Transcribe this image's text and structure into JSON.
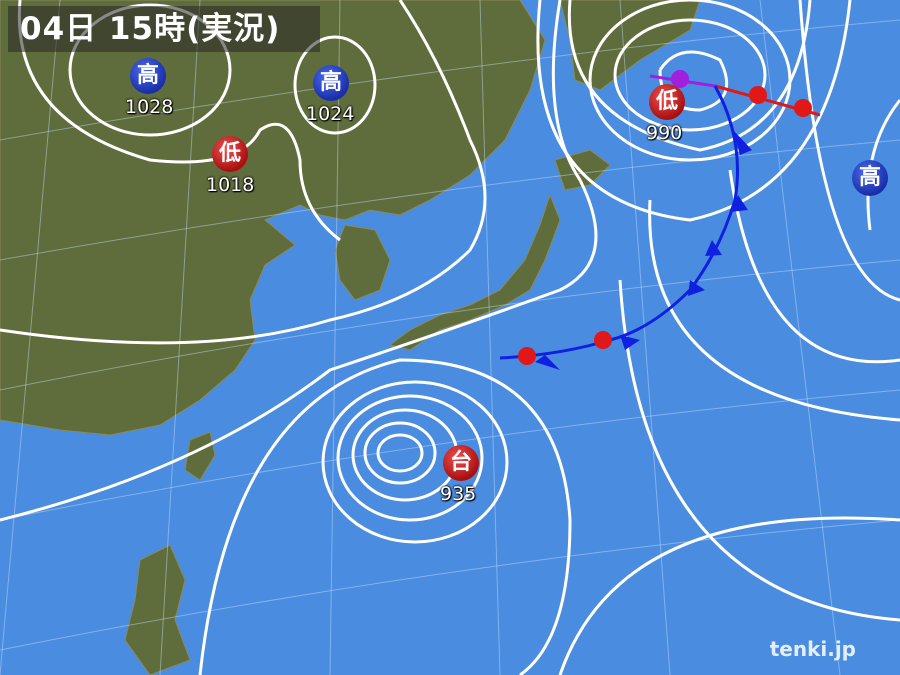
{
  "title": "04日 15時(実況)",
  "colors": {
    "ocean": "#4a8ce0",
    "land": "#5e6b3a",
    "isobar": "#ffffff",
    "warm_front": "#e01818",
    "cold_front": "#1020e0",
    "occluded_front": "#a020e0",
    "high": "#1a2ea8",
    "low": "#c01818"
  },
  "pressure_systems": [
    {
      "type": "high",
      "symbol": "高",
      "value": "1028"
    },
    {
      "type": "high",
      "symbol": "高",
      "value": "1024"
    },
    {
      "type": "low",
      "symbol": "低",
      "value": "1018"
    },
    {
      "type": "low",
      "symbol": "低",
      "value": "990"
    },
    {
      "type": "typhoon",
      "symbol": "台",
      "value": "935"
    },
    {
      "type": "high",
      "symbol": "高",
      "value": ""
    }
  ],
  "logo": "tenki.jp"
}
